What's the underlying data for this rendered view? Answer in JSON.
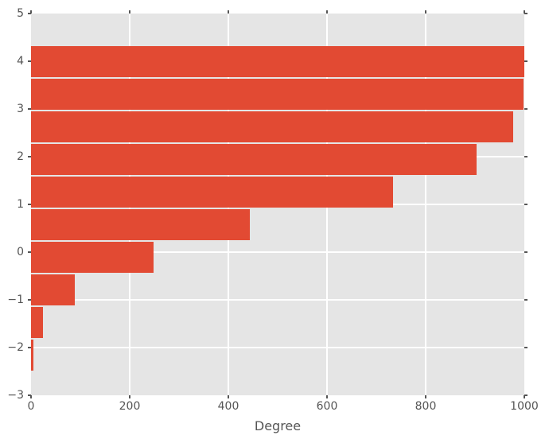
{
  "chart_data": {
    "type": "bar",
    "orientation": "horizontal",
    "title": "",
    "xlabel": "Degree",
    "ylabel": "",
    "xlim": [
      0,
      1000
    ],
    "ylim": [
      -3,
      5
    ],
    "x_ticks": [
      0,
      200,
      400,
      600,
      800,
      1000
    ],
    "x_tick_labels": [
      "0",
      "200",
      "400",
      "600",
      "800",
      "1000"
    ],
    "y_ticks": [
      5,
      4,
      3,
      2,
      1,
      0,
      -1,
      -2,
      -3
    ],
    "y_tick_labels": [
      "5",
      "4",
      "3",
      "2",
      "1",
      "0",
      "−1",
      "−2",
      "−3"
    ],
    "grid": true,
    "legend": false,
    "bars": [
      {
        "y_bottom": 3.647,
        "y_top": 4.33,
        "value": 1000
      },
      {
        "y_bottom": 2.964,
        "y_top": 3.647,
        "value": 998
      },
      {
        "y_bottom": 2.281,
        "y_top": 2.964,
        "value": 977
      },
      {
        "y_bottom": 1.598,
        "y_top": 2.281,
        "value": 903
      },
      {
        "y_bottom": 0.915,
        "y_top": 1.598,
        "value": 734
      },
      {
        "y_bottom": 0.232,
        "y_top": 0.915,
        "value": 444
      },
      {
        "y_bottom": -0.451,
        "y_top": 0.232,
        "value": 249
      },
      {
        "y_bottom": -1.134,
        "y_top": -0.451,
        "value": 89
      },
      {
        "y_bottom": -1.817,
        "y_top": -1.134,
        "value": 24
      },
      {
        "y_bottom": -2.5,
        "y_top": -1.817,
        "value": 5
      }
    ],
    "colors": {
      "bar": "#E24A33",
      "plot_background": "#E5E5E5",
      "figure_background": "#FFFFFF",
      "grid": "#FFFFFF",
      "tick": "#555555",
      "text": "#555555"
    }
  }
}
